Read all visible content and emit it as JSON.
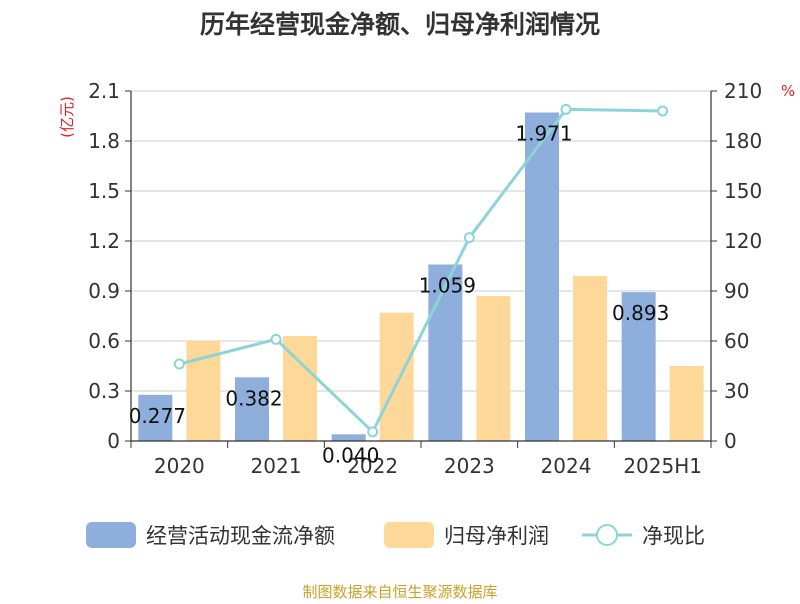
{
  "chart_data": {
    "type": "bar",
    "title": "历年经营现金净额、归母净利润情况",
    "categories": [
      "2020",
      "2021",
      "2022",
      "2023",
      "2024",
      "2025H1"
    ],
    "left_axis": {
      "label": "(亿元)",
      "range": [
        0,
        2.1
      ],
      "ticks": [
        "0",
        "0.3",
        "0.6",
        "0.9",
        "1.2",
        "1.5",
        "1.8",
        "2.1"
      ]
    },
    "right_axis": {
      "label": "%",
      "range": [
        0,
        210
      ],
      "ticks": [
        "0",
        "30",
        "60",
        "90",
        "120",
        "150",
        "180",
        "210"
      ]
    },
    "series": [
      {
        "name": "经营活动现金流净额",
        "type": "bar",
        "axis": "left",
        "color": "#8eaedc",
        "values": [
          0.277,
          0.382,
          0.04,
          1.059,
          1.971,
          0.893
        ],
        "labels": [
          "0.277",
          "0.382",
          "0.040",
          "1.059",
          "1.971",
          "0.893"
        ]
      },
      {
        "name": "归母净利润",
        "type": "bar",
        "axis": "left",
        "color": "#fdd898",
        "values": [
          0.6,
          0.63,
          0.77,
          0.87,
          0.99,
          0.45
        ]
      },
      {
        "name": "净现比",
        "type": "line",
        "axis": "right",
        "color": "#8dd4d8",
        "values": [
          46.2,
          61.0,
          5.5,
          122.0,
          199.0,
          198.0
        ]
      }
    ],
    "grid": true,
    "legend": "bottom"
  },
  "footer": {
    "source": "制图数据来自恒生聚源数据库"
  }
}
